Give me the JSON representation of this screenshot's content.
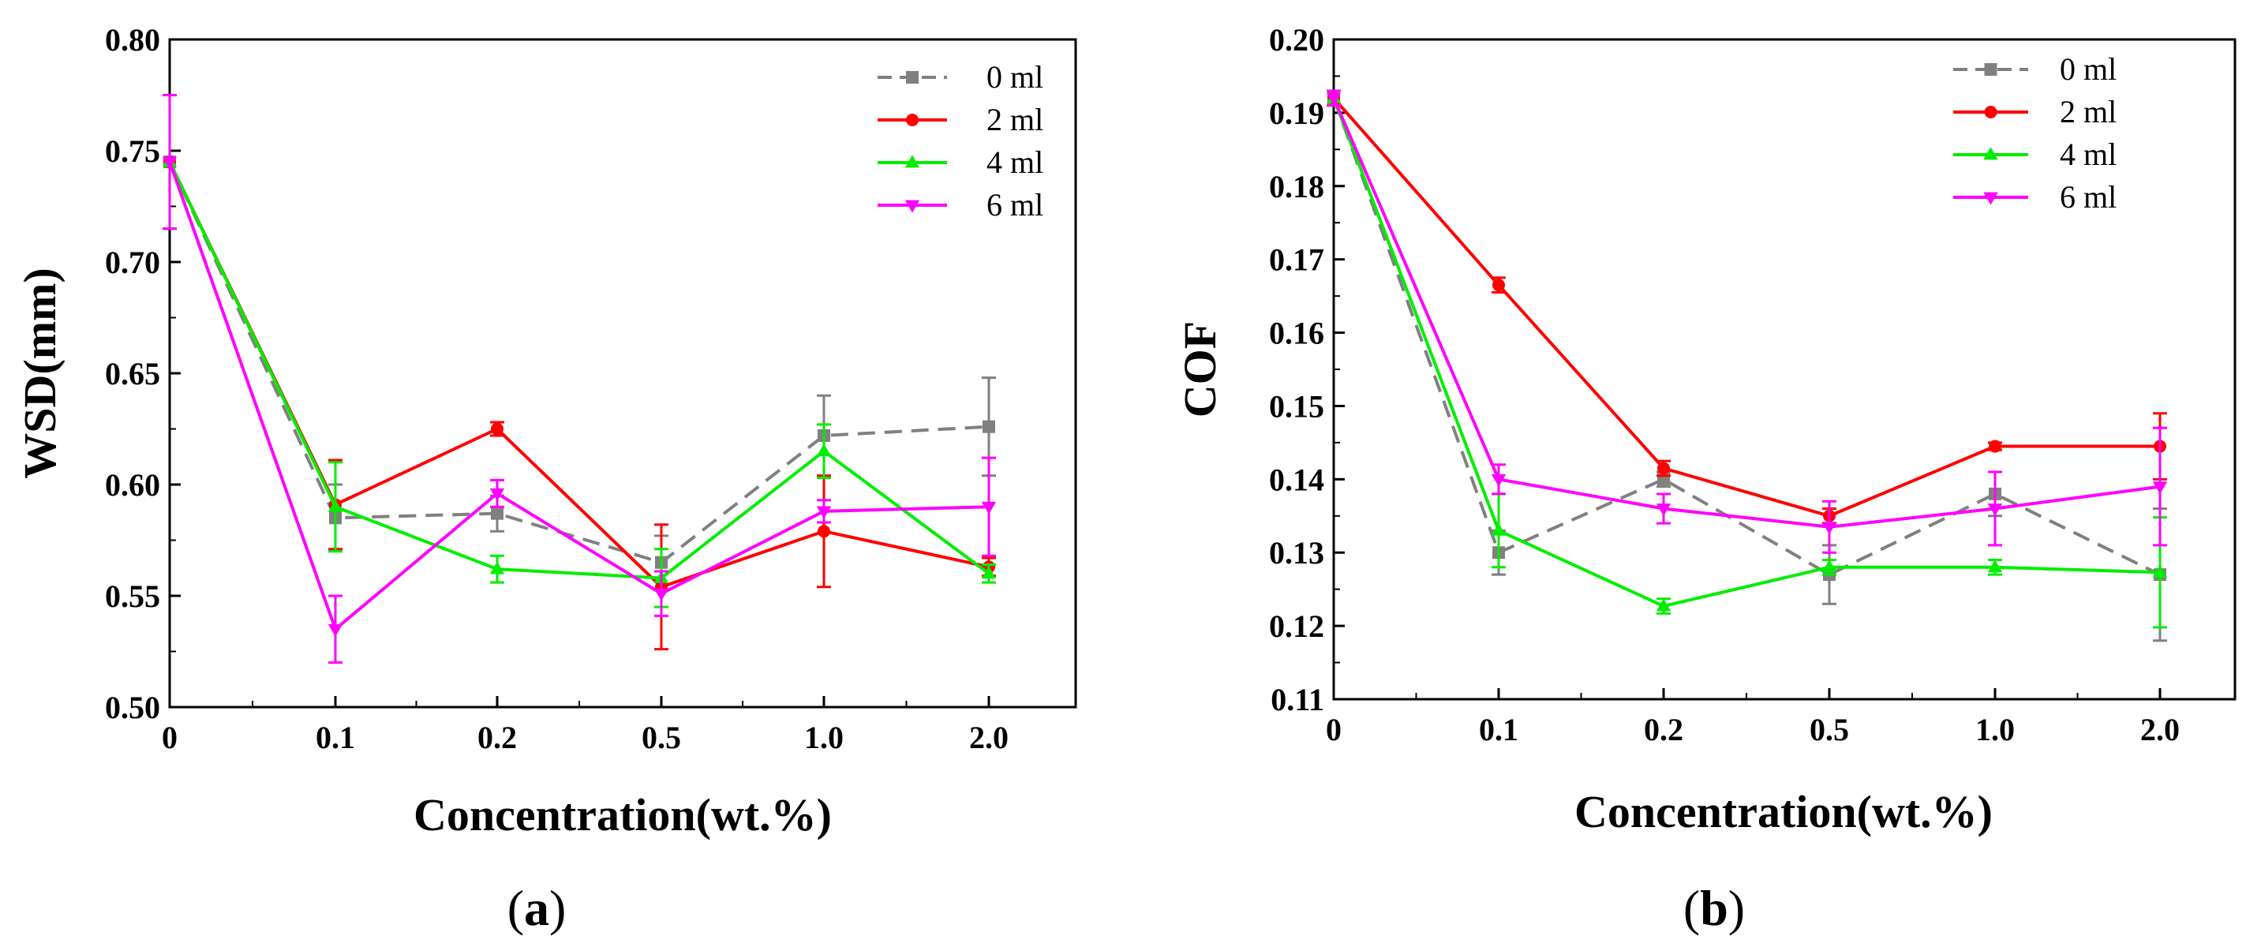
{
  "chart_data": [
    {
      "type": "line",
      "caption": "(a)",
      "caption_letter": "a",
      "xlabel": "Concentration(wt.%)",
      "ylabel": "WSD(mm)",
      "categories": [
        "0",
        "0.1",
        "0.2",
        "0.5",
        "1.0",
        "2.0"
      ],
      "ylim": [
        0.5,
        0.8
      ],
      "yticks": [
        "0.50",
        "0.55",
        "0.60",
        "0.65",
        "0.70",
        "0.75",
        "0.80"
      ],
      "legend_position": "top-right",
      "series": [
        {
          "name": "0 ml",
          "color": "#808080",
          "marker": "square",
          "dashed": true,
          "values": [
            0.745,
            0.585,
            0.587,
            0.565,
            0.622,
            0.626
          ],
          "errors": [
            0.03,
            0.015,
            0.008,
            0.012,
            0.018,
            0.022
          ]
        },
        {
          "name": "2 ml",
          "color": "#ff0000",
          "marker": "circle",
          "dashed": false,
          "values": [
            0.745,
            0.591,
            0.625,
            0.554,
            0.579,
            0.563
          ],
          "errors": [
            0.03,
            0.02,
            0.003,
            0.028,
            0.025,
            0.004
          ]
        },
        {
          "name": "4 ml",
          "color": "#00ee00",
          "marker": "triangle-up",
          "dashed": false,
          "values": [
            0.745,
            0.59,
            0.562,
            0.558,
            0.615,
            0.56
          ],
          "errors": [
            0.03,
            0.02,
            0.006,
            0.013,
            0.012,
            0.004
          ]
        },
        {
          "name": "6 ml",
          "color": "#ff00ff",
          "marker": "triangle-down",
          "dashed": false,
          "values": [
            0.745,
            0.535,
            0.596,
            0.551,
            0.588,
            0.59
          ],
          "errors": [
            0.03,
            0.015,
            0.006,
            0.01,
            0.005,
            0.022
          ]
        }
      ]
    },
    {
      "type": "line",
      "caption": "(b)",
      "caption_letter": "b",
      "xlabel": "Concentration(wt.%)",
      "ylabel": "COF",
      "categories": [
        "0",
        "0.1",
        "0.2",
        "0.5",
        "1.0",
        "2.0"
      ],
      "ylim": [
        0.11,
        0.2
      ],
      "yticks": [
        "0.11",
        "0.12",
        "0.13",
        "0.14",
        "0.15",
        "0.16",
        "0.17",
        "0.18",
        "0.19",
        "0.20"
      ],
      "legend_position": "top-right",
      "series": [
        {
          "name": "0 ml",
          "color": "#808080",
          "marker": "square",
          "dashed": true,
          "values": [
            0.192,
            0.13,
            0.14,
            0.127,
            0.138,
            0.127
          ],
          "errors": [
            0.001,
            0.003,
            0.001,
            0.004,
            0.003,
            0.009
          ]
        },
        {
          "name": "2 ml",
          "color": "#ff0000",
          "marker": "circle",
          "dashed": false,
          "values": [
            0.192,
            0.1665,
            0.1415,
            0.135,
            0.1445,
            0.1445
          ],
          "errors": [
            0.001,
            0.001,
            0.001,
            0.001,
            0.0005,
            0.0045
          ]
        },
        {
          "name": "4 ml",
          "color": "#00ee00",
          "marker": "triangle-up",
          "dashed": false,
          "values": [
            0.192,
            0.133,
            0.1227,
            0.128,
            0.128,
            0.1273
          ],
          "errors": [
            0.001,
            0.005,
            0.001,
            0.001,
            0.001,
            0.0075
          ]
        },
        {
          "name": "6 ml",
          "color": "#ff00ff",
          "marker": "triangle-down",
          "dashed": false,
          "values": [
            0.192,
            0.14,
            0.136,
            0.1335,
            0.136,
            0.139
          ],
          "errors": [
            0.001,
            0.002,
            0.002,
            0.0035,
            0.005,
            0.008
          ]
        }
      ]
    }
  ]
}
